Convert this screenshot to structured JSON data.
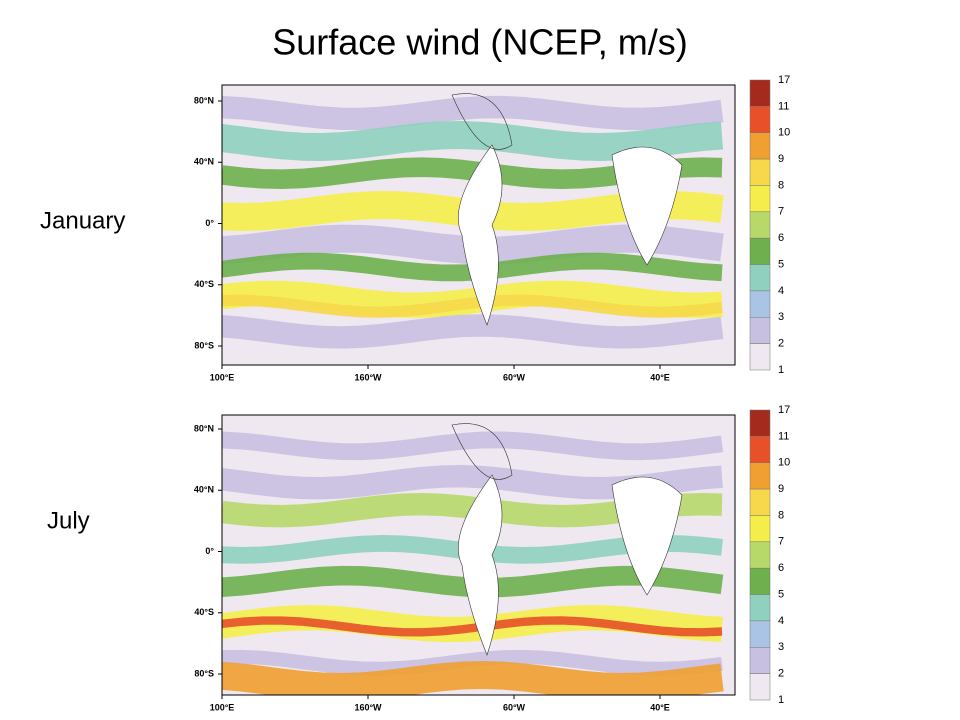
{
  "title": "Surface wind (NCEP, m/s)",
  "panels": [
    {
      "label": "January"
    },
    {
      "label": "July"
    }
  ],
  "lat_labels": [
    "80°N",
    "40°N",
    "0°",
    "40°S",
    "80°S"
  ],
  "lon_labels": [
    "100°E",
    "160°W",
    "60°W",
    "40°E"
  ],
  "colorbar": {
    "levels": [
      "17",
      "11",
      "10",
      "9",
      "8",
      "7",
      "6",
      "5",
      "4",
      "3",
      "2",
      "1"
    ],
    "colors": [
      "#a52a1e",
      "#e8502a",
      "#f0a030",
      "#f6d84a",
      "#f5ee4a",
      "#b6d96a",
      "#6db04c",
      "#8fd0bf",
      "#a9c4e4",
      "#c8c0e0",
      "#efe8f0"
    ]
  }
}
